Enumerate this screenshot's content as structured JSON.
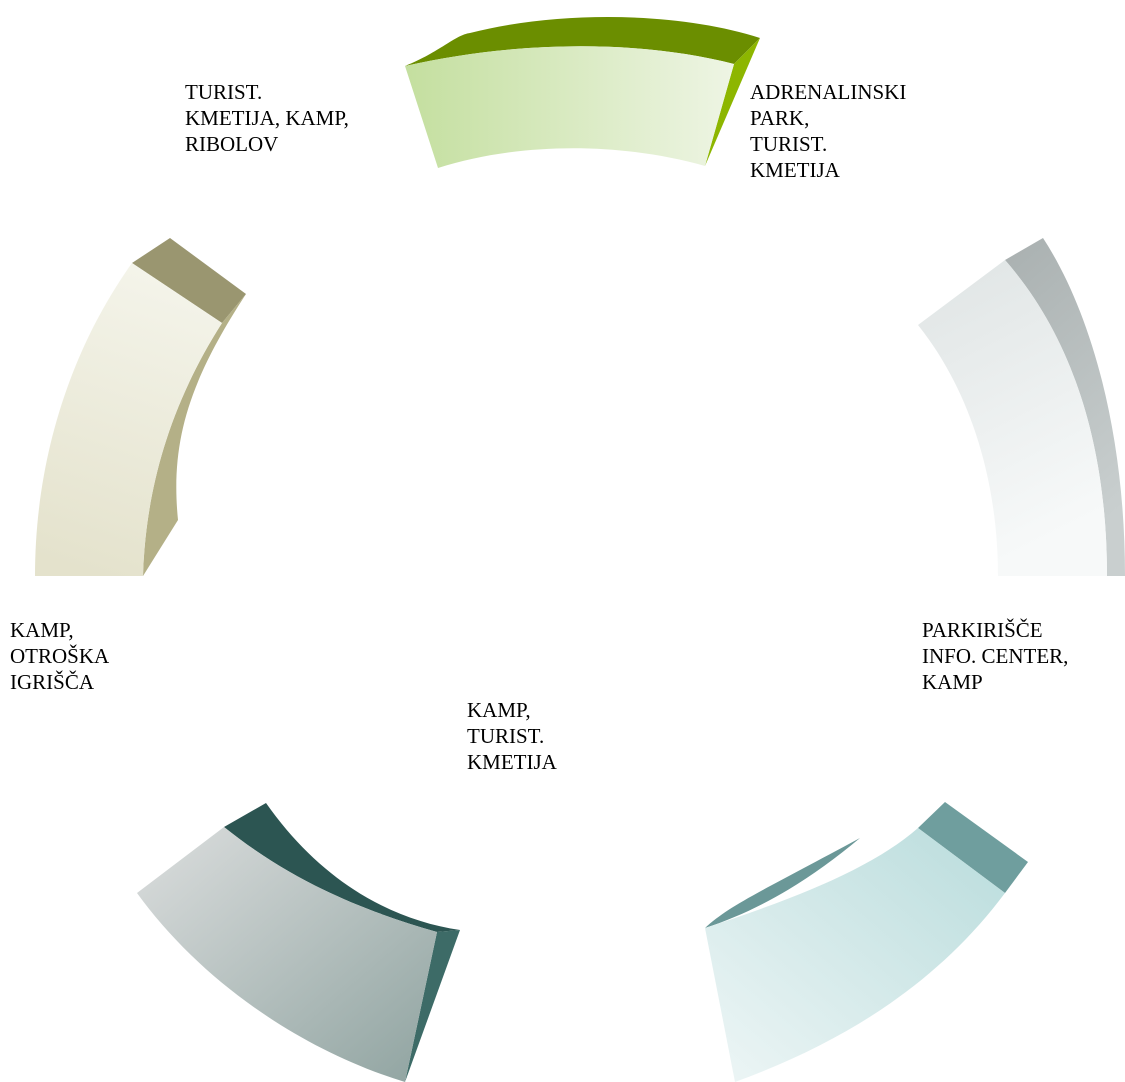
{
  "segments": [
    {
      "id": "top",
      "colors": {
        "front_start": "#c4df9f",
        "front_end": "#eef5e4",
        "top": "#6b8e00",
        "side": "#8db600"
      },
      "label_lines": []
    },
    {
      "id": "right",
      "colors": {
        "front_start": "#dfe4e4",
        "front_end": "#f7f9f9",
        "side_start": "#a9b0b0",
        "side_end": "#c9cfcf"
      },
      "label_lines": []
    },
    {
      "id": "bottom-right",
      "colors": {
        "front_start": "#b9dcdc",
        "front_end": "#eef6f6",
        "top": "#6f9e9e",
        "side": "#6b9898"
      },
      "label_lines": []
    },
    {
      "id": "bottom-left",
      "colors": {
        "front_start": "#dcdede",
        "front_end": "#8fa3a0",
        "top": "#2c5552",
        "side": "#3d6b67"
      },
      "label_lines": []
    },
    {
      "id": "left",
      "colors": {
        "front_start": "#f4f4ea",
        "front_end": "#e4e2cc",
        "top": "#9a9670",
        "side": "#b4b087"
      },
      "label_lines": []
    }
  ],
  "labels": {
    "top_left": [
      "TURIST.",
      "KMETIJA, KAMP,",
      "RIBOLOV"
    ],
    "top_right": [
      "ADRENALINSKI",
      "PARK,",
      "TURIST.",
      "KMETIJA"
    ],
    "right": [
      "PARKIRIŠČE",
      "INFO. CENTER,",
      "KAMP"
    ],
    "left": [
      "KAMP,",
      "OTROŠKA",
      "IGRIŠČA"
    ],
    "bottom": [
      "KAMP,",
      "TURIST.",
      "KMETIJA"
    ]
  }
}
